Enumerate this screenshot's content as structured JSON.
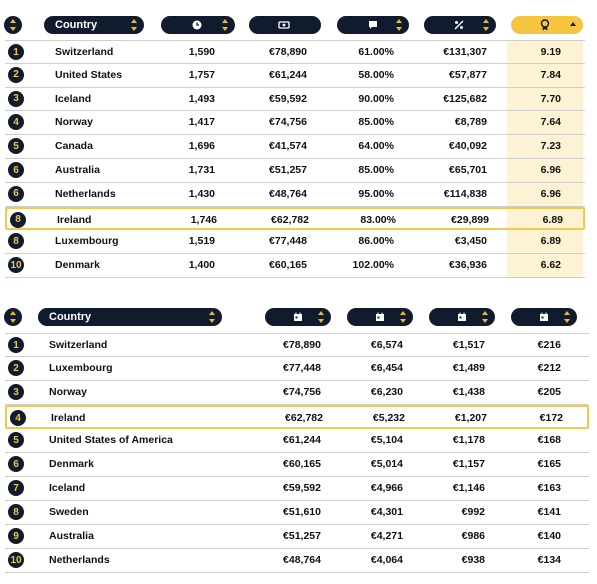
{
  "table1": {
    "headers": {
      "country": "Country"
    },
    "rows": [
      {
        "rank": "1",
        "country": "Switzerland",
        "hours": "1,590",
        "income": "€78,890",
        "pct": "61.00%",
        "price": "€131,307",
        "score": "9.19"
      },
      {
        "rank": "2",
        "country": "United States",
        "hours": "1,757",
        "income": "€61,244",
        "pct": "58.00%",
        "price": "€57,877",
        "score": "7.84"
      },
      {
        "rank": "3",
        "country": "Iceland",
        "hours": "1,493",
        "income": "€59,592",
        "pct": "90.00%",
        "price": "€125,682",
        "score": "7.70"
      },
      {
        "rank": "4",
        "country": "Norway",
        "hours": "1,417",
        "income": "€74,756",
        "pct": "85.00%",
        "price": "€8,789",
        "score": "7.64"
      },
      {
        "rank": "5",
        "country": "Canada",
        "hours": "1,696",
        "income": "€41,574",
        "pct": "64.00%",
        "price": "€40,092",
        "score": "7.23"
      },
      {
        "rank": "6",
        "country": "Australia",
        "hours": "1,731",
        "income": "€51,257",
        "pct": "85.00%",
        "price": "€65,701",
        "score": "6.96"
      },
      {
        "rank": "6",
        "country": "Netherlands",
        "hours": "1,430",
        "income": "€48,764",
        "pct": "95.00%",
        "price": "€114,838",
        "score": "6.96"
      },
      {
        "rank": "8",
        "country": "Ireland",
        "hours": "1,746",
        "income": "€62,782",
        "pct": "83.00%",
        "price": "€29,899",
        "score": "6.89"
      },
      {
        "rank": "8",
        "country": "Luxembourg",
        "hours": "1,519",
        "income": "€77,448",
        "pct": "86.00%",
        "price": "€3,450",
        "score": "6.89"
      },
      {
        "rank": "10",
        "country": "Denmark",
        "hours": "1,400",
        "income": "€60,165",
        "pct": "102.00%",
        "price": "€36,936",
        "score": "6.62"
      }
    ],
    "highlight_index": 7,
    "icons": [
      "sort-icon",
      "clock-icon",
      "money-icon",
      "chat-icon",
      "percent-icon",
      "award-icon"
    ]
  },
  "table2": {
    "headers": {
      "country": "Country"
    },
    "rows": [
      {
        "rank": "1",
        "country": "Switzerland",
        "yearly": "€78,890",
        "monthly": "€6,574",
        "weekly": "€1,517",
        "daily": "€216"
      },
      {
        "rank": "2",
        "country": "Luxembourg",
        "yearly": "€77,448",
        "monthly": "€6,454",
        "weekly": "€1,489",
        "daily": "€212"
      },
      {
        "rank": "3",
        "country": "Norway",
        "yearly": "€74,756",
        "monthly": "€6,230",
        "weekly": "€1,438",
        "daily": "€205"
      },
      {
        "rank": "4",
        "country": "Ireland",
        "yearly": "€62,782",
        "monthly": "€5,232",
        "weekly": "€1,207",
        "daily": "€172"
      },
      {
        "rank": "5",
        "country": "United States of America",
        "yearly": "€61,244",
        "monthly": "€5,104",
        "weekly": "€1,178",
        "daily": "€168"
      },
      {
        "rank": "6",
        "country": "Denmark",
        "yearly": "€60,165",
        "monthly": "€5,014",
        "weekly": "€1,157",
        "daily": "€165"
      },
      {
        "rank": "7",
        "country": "Iceland",
        "yearly": "€59,592",
        "monthly": "€4,966",
        "weekly": "€1,146",
        "daily": "€163"
      },
      {
        "rank": "8",
        "country": "Sweden",
        "yearly": "€51,610",
        "monthly": "€4,301",
        "weekly": "€992",
        "daily": "€141"
      },
      {
        "rank": "9",
        "country": "Australia",
        "yearly": "€51,257",
        "monthly": "€4,271",
        "weekly": "€986",
        "daily": "€140"
      },
      {
        "rank": "10",
        "country": "Netherlands",
        "yearly": "€48,764",
        "monthly": "€4,064",
        "weekly": "€938",
        "daily": "€134"
      }
    ],
    "highlight_index": 3,
    "icons": [
      "sort-icon",
      "calendar-icon",
      "calendar-icon",
      "calendar-icon",
      "calendar-icon"
    ]
  },
  "colors": {
    "navy": "#101b2d",
    "gold": "#f6c53f",
    "highlight_border": "#f2c94c",
    "score_bg": "#fdf2d4"
  }
}
